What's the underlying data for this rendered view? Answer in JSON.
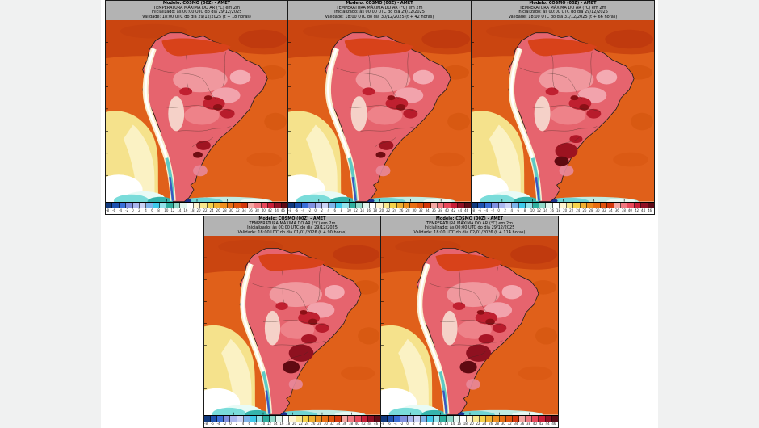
{
  "window": {
    "background": "#f0f1f1",
    "content_background": "#ffffff"
  },
  "maps": [
    {
      "variant": 1,
      "header": {
        "model": "Modelo: COSMO (00Z) - AMET",
        "variable": "TEMPERATURA MÁXIMA DO AR (°C) em 2m",
        "init": "Inicializado: às 00:00 UTC do dia 29/12/2025",
        "valid": "Validade: 18:00 UTC do dia 29/12/2025 (t + 18 horas)"
      }
    },
    {
      "variant": 1,
      "header": {
        "model": "Modelo: COSMO (00Z) - AMET",
        "variable": "TEMPERATURA MÁXIMA DO AR (°C) em 2m",
        "init": "Inicializado: às 00:00 UTC do dia 29/12/2025",
        "valid": "Validade: 18:00 UTC do dia 30/12/2025 (t + 42 horas)"
      }
    },
    {
      "variant": 2,
      "header": {
        "model": "Modelo: COSMO (00Z) - AMET",
        "variable": "TEMPERATURA MÁXIMA DO AR (°C) em 2m",
        "init": "Inicializado: às 00:00 UTC do dia 29/12/2025",
        "valid": "Validade: 18:00 UTC do dia 31/12/2025 (t + 66 horas)"
      }
    },
    {
      "variant": 3,
      "header": {
        "model": "Modelo: COSMO (00Z) - AMET",
        "variable": "TEMPERATURA MÁXIMA DO AR (°C) em 2m",
        "init": "Inicializado: às 00:00 UTC do dia 29/12/2025",
        "valid": "Validade: 18:00 UTC do dia 01/01/2026 (t + 90 horas)"
      }
    },
    {
      "variant": 3,
      "header": {
        "model": "Modelo: COSMO (00Z) - AMET",
        "variable": "TEMPERATURA MÁXIMA DO AR (°C) em 2m",
        "init": "Inicializado: às 00:00 UTC do dia 29/12/2025",
        "valid": "Validade: 18:00 UTC do dia 02/01/2026 (t + 114 horas)"
      }
    }
  ],
  "colorbar": {
    "unit": "°C",
    "ticks": [
      "-8",
      "-6",
      "-4",
      "-2",
      "0",
      "2",
      "4",
      "6",
      "8",
      "10",
      "12",
      "14",
      "16",
      "18",
      "20",
      "22",
      "24",
      "26",
      "28",
      "30",
      "32",
      "34",
      "36",
      "38",
      "40",
      "42",
      "44",
      "46"
    ],
    "colors": [
      "#123a7e",
      "#1e52b0",
      "#3a6fd8",
      "#8090e0",
      "#aab6ee",
      "#ccd4f6",
      "#7fb4ea",
      "#3ec9e9",
      "#93e2ea",
      "#2fae9e",
      "#8fd8c8",
      "#e2f4ee",
      "#ffffff",
      "#fdf4d2",
      "#f8e88e",
      "#f5d34c",
      "#f0b031",
      "#ee8f1f",
      "#e86f15",
      "#e0540e",
      "#d4380c",
      "#f4a8a4",
      "#f07880",
      "#e84a5c",
      "#c81f38",
      "#901024",
      "#5e0a16"
    ]
  }
}
